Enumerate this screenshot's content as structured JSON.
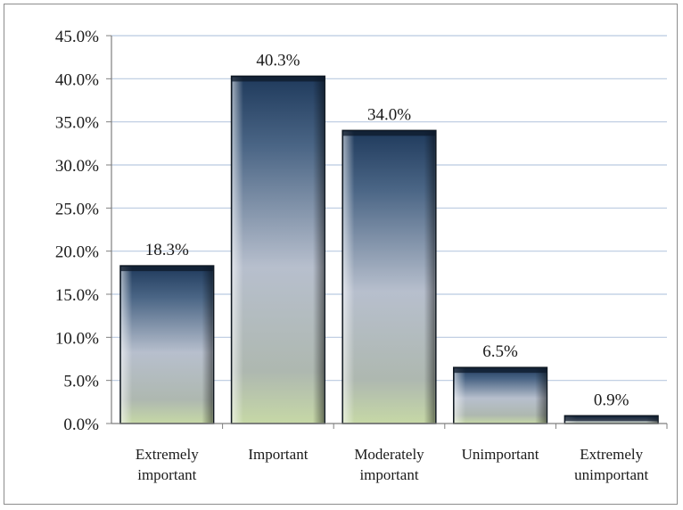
{
  "chart_data": {
    "type": "bar",
    "title": "",
    "xlabel": "",
    "ylabel": "",
    "categories": [
      [
        "Extremely",
        "important"
      ],
      [
        "Important"
      ],
      [
        "Moderately",
        "important"
      ],
      [
        "Unimportant"
      ],
      [
        "Extremely",
        "unimportant"
      ]
    ],
    "values": [
      18.3,
      40.3,
      34.0,
      6.5,
      0.9
    ],
    "data_labels": [
      "18.3%",
      "40.3%",
      "34.0%",
      "6.5%",
      "0.9%"
    ],
    "ylim": [
      0,
      45
    ],
    "yticks": [
      "0.0%",
      "5.0%",
      "10.0%",
      "15.0%",
      "20.0%",
      "25.0%",
      "30.0%",
      "35.0%",
      "40.0%",
      "45.0%"
    ],
    "ytick_values": [
      0,
      5,
      10,
      15,
      20,
      25,
      30,
      35,
      40,
      45
    ],
    "grid": true,
    "legend": "none",
    "colors": {
      "bar_top": "#1f3a5c",
      "bar_mid": "#b4bccb",
      "bar_bottom": "#c9d8b0",
      "bar_outline": "#101820",
      "gridline": "#b9c9e0",
      "axis": "#7f7f7f"
    }
  }
}
